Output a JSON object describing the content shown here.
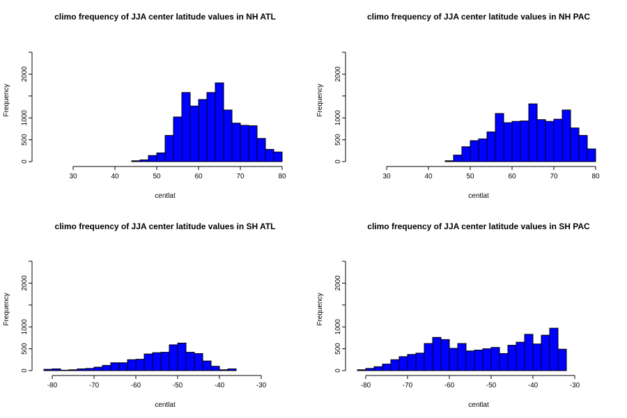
{
  "chart_data": [
    {
      "type": "bar",
      "title": "climo frequency of JJA center latitude values in NH ATL",
      "xlabel": "centlat",
      "ylabel": "Frequency",
      "xlim": [
        23,
        81
      ],
      "ylim": [
        0,
        2500
      ],
      "xticks": [
        30,
        40,
        50,
        60,
        70,
        80
      ],
      "yticks": [
        0,
        500,
        1000,
        2000
      ],
      "bar_color": "#0000ff",
      "bin_width": 2,
      "bin_starts": [
        24,
        26,
        28,
        30,
        32,
        34,
        36,
        38,
        40,
        42,
        44,
        46,
        48,
        50,
        52,
        54,
        56,
        58,
        60,
        62,
        64,
        66,
        68,
        70,
        72,
        74,
        76,
        78
      ],
      "values": [
        0,
        0,
        0,
        0,
        0,
        0,
        0,
        0,
        0,
        0,
        20,
        40,
        140,
        200,
        600,
        1020,
        1580,
        1270,
        1420,
        1580,
        1800,
        1180,
        880,
        830,
        820,
        530,
        280,
        220
      ]
    },
    {
      "type": "bar",
      "title": "climo frequency of JJA center latitude values in NH PAC",
      "xlabel": "centlat",
      "ylabel": "Frequency",
      "xlim": [
        23,
        81
      ],
      "ylim": [
        0,
        2500
      ],
      "xticks": [
        30,
        40,
        50,
        60,
        70,
        80
      ],
      "yticks": [
        0,
        500,
        1000,
        2000
      ],
      "bar_color": "#0000ff",
      "bin_width": 2,
      "bin_starts": [
        24,
        26,
        28,
        30,
        32,
        34,
        36,
        38,
        40,
        42,
        44,
        46,
        48,
        50,
        52,
        54,
        56,
        58,
        60,
        62,
        64,
        66,
        68,
        70,
        72,
        74,
        76,
        78
      ],
      "values": [
        0,
        0,
        0,
        0,
        0,
        0,
        0,
        0,
        0,
        0,
        20,
        150,
        340,
        480,
        520,
        680,
        1100,
        890,
        920,
        930,
        1320,
        960,
        920,
        970,
        1180,
        770,
        600,
        290
      ]
    },
    {
      "type": "bar",
      "title": "climo frequency of JJA center latitude values in SH ATL",
      "xlabel": "centlat",
      "ylabel": "Frequency",
      "xlim": [
        -82,
        -24
      ],
      "ylim": [
        0,
        2500
      ],
      "xticks": [
        -80,
        -70,
        -60,
        -50,
        -40,
        -30
      ],
      "yticks": [
        0,
        500,
        1000,
        2000
      ],
      "bar_color": "#0000ff",
      "bin_width": 2,
      "bin_starts": [
        -82,
        -80,
        -78,
        -76,
        -74,
        -72,
        -70,
        -68,
        -66,
        -64,
        -62,
        -60,
        -58,
        -56,
        -54,
        -52,
        -50,
        -48,
        -46,
        -44,
        -42,
        -40,
        -38,
        -36,
        -34,
        -32,
        -30,
        -28,
        -26
      ],
      "values": [
        30,
        40,
        10,
        20,
        40,
        50,
        80,
        120,
        180,
        180,
        250,
        260,
        380,
        410,
        420,
        590,
        630,
        420,
        390,
        220,
        100,
        20,
        40,
        0,
        0,
        0,
        0,
        0,
        0
      ]
    },
    {
      "type": "bar",
      "title": "climo frequency of JJA center latitude values in SH PAC",
      "xlabel": "centlat",
      "ylabel": "Frequency",
      "xlim": [
        -82,
        -24
      ],
      "ylim": [
        0,
        2500
      ],
      "xticks": [
        -80,
        -70,
        -60,
        -50,
        -40,
        -30
      ],
      "yticks": [
        0,
        500,
        1000,
        2000
      ],
      "bar_color": "#0000ff",
      "bin_width": 2,
      "bin_starts": [
        -82,
        -80,
        -78,
        -76,
        -74,
        -72,
        -70,
        -68,
        -66,
        -64,
        -62,
        -60,
        -58,
        -56,
        -54,
        -52,
        -50,
        -48,
        -46,
        -44,
        -42,
        -40,
        -38,
        -36,
        -34,
        -32,
        -30,
        -28,
        -26
      ],
      "values": [
        20,
        50,
        90,
        150,
        250,
        320,
        370,
        400,
        620,
        760,
        710,
        510,
        620,
        450,
        470,
        500,
        530,
        390,
        580,
        650,
        830,
        610,
        810,
        970,
        490,
        0,
        0,
        0,
        0
      ]
    }
  ]
}
